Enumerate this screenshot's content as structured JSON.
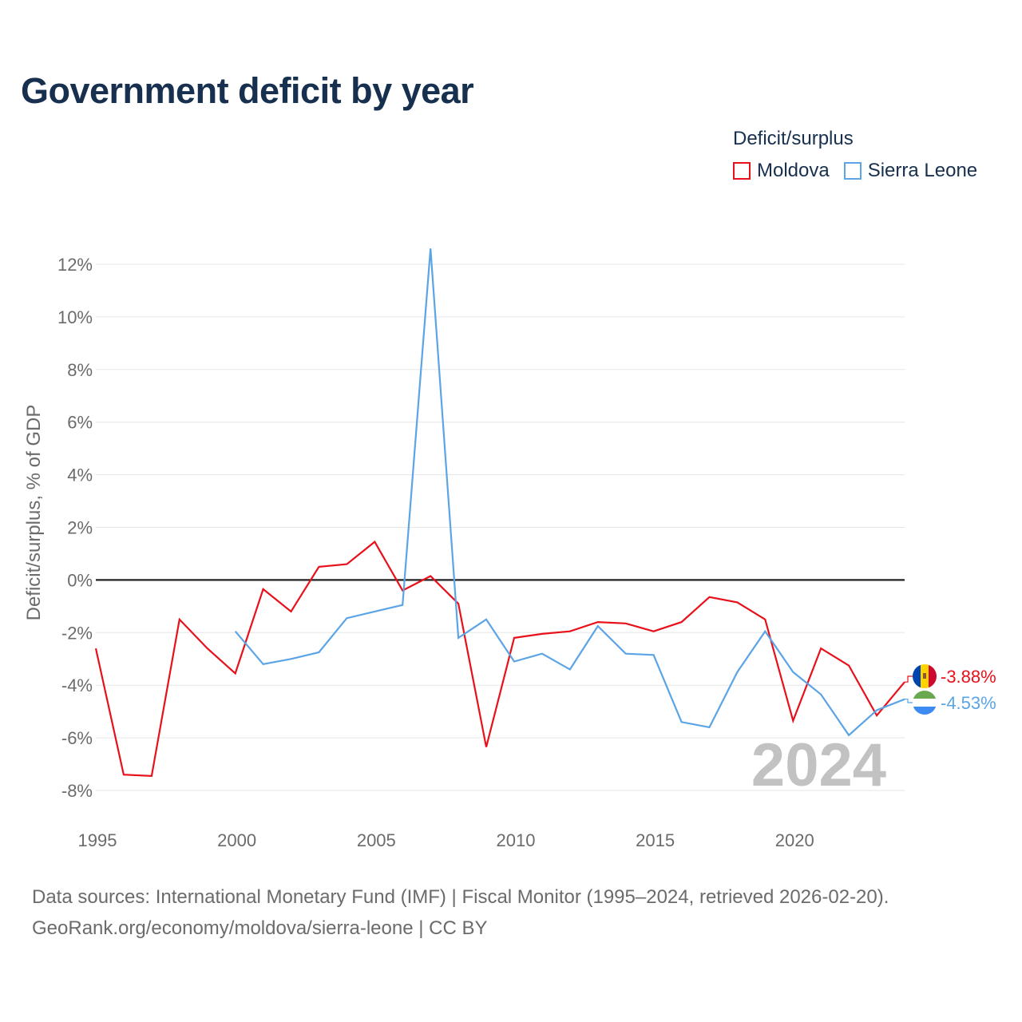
{
  "title": "Government deficit by year",
  "legend": {
    "title": "Deficit/surplus",
    "items": [
      {
        "name": "Moldova",
        "color": "#e8101a"
      },
      {
        "name": "Sierra Leone",
        "color": "#5ba4e6"
      }
    ]
  },
  "chart_data": {
    "type": "line",
    "ylabel": "Deficit/surplus, % of GDP",
    "xlabel": "",
    "xlim": [
      1995,
      2024
    ],
    "ylim": [
      -8,
      12
    ],
    "x_ticks": [
      1995,
      2000,
      2005,
      2010,
      2015,
      2020
    ],
    "x_tick_labels": [
      "1995",
      "2000",
      "2005",
      "2010",
      "2015",
      "2020"
    ],
    "y_ticks": [
      12,
      10,
      8,
      6,
      4,
      2,
      0,
      -2,
      -4,
      -6,
      -8
    ],
    "y_tick_labels": [
      "12%",
      "10%",
      "8%",
      "6%",
      "4%",
      "2%",
      "0%",
      "-2%",
      "-4%",
      "-6%",
      "-8%"
    ],
    "year_watermark": "2024",
    "series": [
      {
        "name": "Moldova",
        "color": "#e8101a",
        "x": [
          1995,
          1996,
          1997,
          1998,
          1999,
          2000,
          2001,
          2002,
          2003,
          2004,
          2005,
          2006,
          2007,
          2008,
          2009,
          2010,
          2011,
          2012,
          2013,
          2014,
          2015,
          2016,
          2017,
          2018,
          2019,
          2020,
          2021,
          2022,
          2023,
          2024
        ],
        "values": [
          -2.6,
          -7.4,
          -7.45,
          -1.5,
          -2.6,
          -3.55,
          -0.35,
          -1.2,
          0.5,
          0.6,
          1.45,
          -0.4,
          0.15,
          -0.9,
          -6.35,
          -2.2,
          -2.05,
          -1.95,
          -1.6,
          -1.65,
          -1.95,
          -1.6,
          -0.65,
          -0.85,
          -1.5,
          -5.35,
          -2.6,
          -3.25,
          -5.15,
          -3.88
        ],
        "end_label": "-3.88%"
      },
      {
        "name": "Sierra Leone",
        "color": "#5ba4e6",
        "x": [
          2000,
          2001,
          2002,
          2003,
          2004,
          2005,
          2006,
          2007,
          2008,
          2009,
          2010,
          2011,
          2012,
          2013,
          2014,
          2015,
          2016,
          2017,
          2018,
          2019,
          2020,
          2021,
          2022,
          2023,
          2024
        ],
        "values": [
          -1.95,
          -3.2,
          -3.0,
          -2.75,
          -1.45,
          -1.2,
          -0.95,
          12.6,
          -2.2,
          -1.5,
          -3.1,
          -2.8,
          -3.4,
          -1.75,
          -2.8,
          -2.85,
          -5.4,
          -5.6,
          -3.5,
          -1.95,
          -3.5,
          -4.35,
          -5.9,
          -4.95,
          -4.53
        ],
        "end_label": "-4.53%"
      }
    ]
  },
  "footer": {
    "line1": "Data sources: International Monetary Fund (IMF) | Fiscal Monitor (1995–2024, retrieved 2026-02-20).",
    "line2": "GeoRank.org/economy/moldova/sierra-leone | CC BY"
  }
}
